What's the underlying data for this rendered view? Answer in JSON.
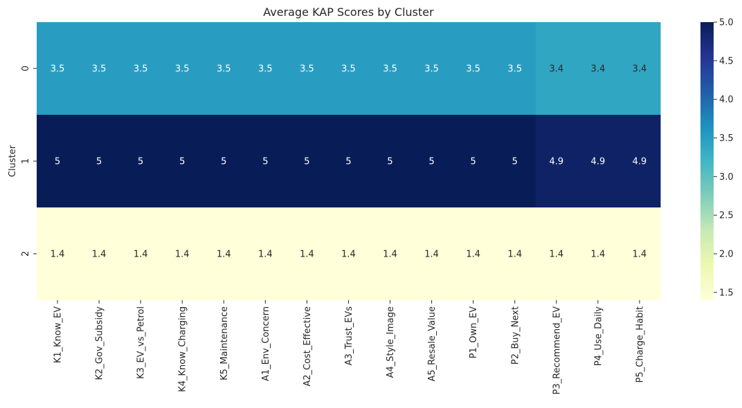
{
  "chart_data": {
    "type": "heatmap",
    "title": "Average KAP Scores by Cluster",
    "xlabel": "",
    "ylabel": "Cluster",
    "x_categories": [
      "K1_Know_EV",
      "K2_Gov_Subsidy",
      "K3_EV_vs_Petrol",
      "K4_Know_Charging",
      "K5_Maintenance",
      "A1_Env_Concern",
      "A2_Cost_Effective",
      "A3_Trust_EVs",
      "A4_Style_Image",
      "A5_Resale_Value",
      "P1_Own_EV",
      "P2_Buy_Next",
      "P3_Recommend_EV",
      "P4_Use_Daily",
      "P5_Charge_Habit"
    ],
    "y_categories": [
      "0",
      "1",
      "2"
    ],
    "values": [
      [
        3.5,
        3.5,
        3.5,
        3.5,
        3.5,
        3.5,
        3.5,
        3.5,
        3.5,
        3.5,
        3.5,
        3.5,
        3.4,
        3.4,
        3.4
      ],
      [
        5,
        5,
        5,
        5,
        5,
        5,
        5,
        5,
        5,
        5,
        5,
        5,
        4.9,
        4.9,
        4.9
      ],
      [
        1.4,
        1.4,
        1.4,
        1.4,
        1.4,
        1.4,
        1.4,
        1.4,
        1.4,
        1.4,
        1.4,
        1.4,
        1.4,
        1.4,
        1.4
      ]
    ],
    "annotations": [
      [
        "3.5",
        "3.5",
        "3.5",
        "3.5",
        "3.5",
        "3.5",
        "3.5",
        "3.5",
        "3.5",
        "3.5",
        "3.5",
        "3.5",
        "3.4",
        "3.4",
        "3.4"
      ],
      [
        "5",
        "5",
        "5",
        "5",
        "5",
        "5",
        "5",
        "5",
        "5",
        "5",
        "5",
        "5",
        "4.9",
        "4.9",
        "4.9"
      ],
      [
        "1.4",
        "1.4",
        "1.4",
        "1.4",
        "1.4",
        "1.4",
        "1.4",
        "1.4",
        "1.4",
        "1.4",
        "1.4",
        "1.4",
        "1.4",
        "1.4",
        "1.4"
      ]
    ],
    "colormap": "YlGnBu",
    "colorbar": {
      "range": [
        1.4,
        5.0
      ],
      "ticks": [
        "1.5",
        "2.0",
        "2.5",
        "3.0",
        "3.5",
        "4.0",
        "4.5",
        "5.0"
      ]
    }
  }
}
